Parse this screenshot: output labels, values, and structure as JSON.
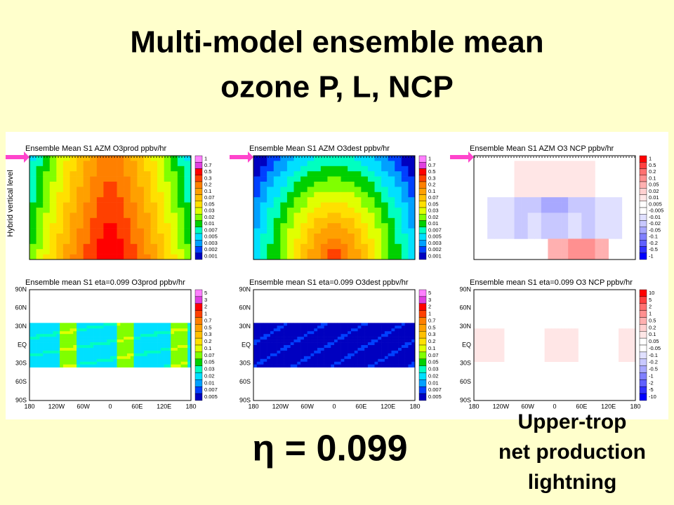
{
  "title": [
    "Multi-model ensemble mean",
    "ozone P, L, NCP"
  ],
  "y_axis_label": "Hybrid vertical level",
  "panels": [
    {
      "title": "Ensemble Mean S1 AZM O3prod ppbv/hr",
      "colorbar": [
        "1",
        "0.7",
        "0.5",
        "0.3",
        "0.2",
        "0.1",
        "0.07",
        "0.05",
        "0.03",
        "0.02",
        "0.01",
        "0.007",
        "0.005",
        "0.003",
        "0.002",
        "0.001"
      ]
    },
    {
      "title": "Ensemble Mean S1 AZM O3dest ppbv/hr",
      "colorbar": [
        "1",
        "0.7",
        "0.5",
        "0.3",
        "0.2",
        "0.1",
        "0.07",
        "0.05",
        "0.03",
        "0.02",
        "0.01",
        "0.007",
        "0.005",
        "0.003",
        "0.002",
        "0.001"
      ]
    },
    {
      "title": "Ensemble Mean S1 AZM O3 NCP ppbv/hr",
      "colorbar": [
        "1",
        "0.5",
        "0.2",
        "0.1",
        "0.05",
        "0.02",
        "0.01",
        "0.005",
        "-0.005",
        "-0.01",
        "-0.02",
        "-0.05",
        "-0.1",
        "-0.2",
        "-0.5",
        "-1"
      ]
    },
    {
      "title": "Ensemble mean S1 eta=0.099 O3prod ppbv/hr",
      "colorbar": [
        "5",
        "3",
        "2",
        "1",
        "0.7",
        "0.5",
        "0.3",
        "0.2",
        "0.1",
        "0.07",
        "0.05",
        "0.03",
        "0.02",
        "0.01",
        "0.007",
        "0.005"
      ]
    },
    {
      "title": "Ensemble mean S1 eta=0.099 O3dest ppbv/hr",
      "colorbar": [
        "5",
        "3",
        "2",
        "1",
        "0.7",
        "0.5",
        "0.3",
        "0.2",
        "0.1",
        "0.07",
        "0.05",
        "0.03",
        "0.02",
        "0.01",
        "0.007",
        "0.005"
      ]
    },
    {
      "title": "Ensemble mean S1 eta=0.099 O3 NCP ppbv/hr",
      "colorbar": [
        "10",
        "5",
        "2",
        "1",
        "0.5",
        "0.2",
        "0.1",
        "0.05",
        "-0.05",
        "-0.1",
        "-0.2",
        "-0.5",
        "-1",
        "-2",
        "-5",
        "-10"
      ]
    }
  ],
  "lat_labels": [
    "90N",
    "60N",
    "30N",
    "EQ",
    "30S",
    "60S",
    "90S"
  ],
  "lon_labels": [
    "180",
    "120W",
    "60W",
    "0",
    "60E",
    "120E",
    "180"
  ],
  "eta_label": "η = 0.099",
  "note": [
    "Upper-trop",
    "net production",
    "lightning"
  ]
}
